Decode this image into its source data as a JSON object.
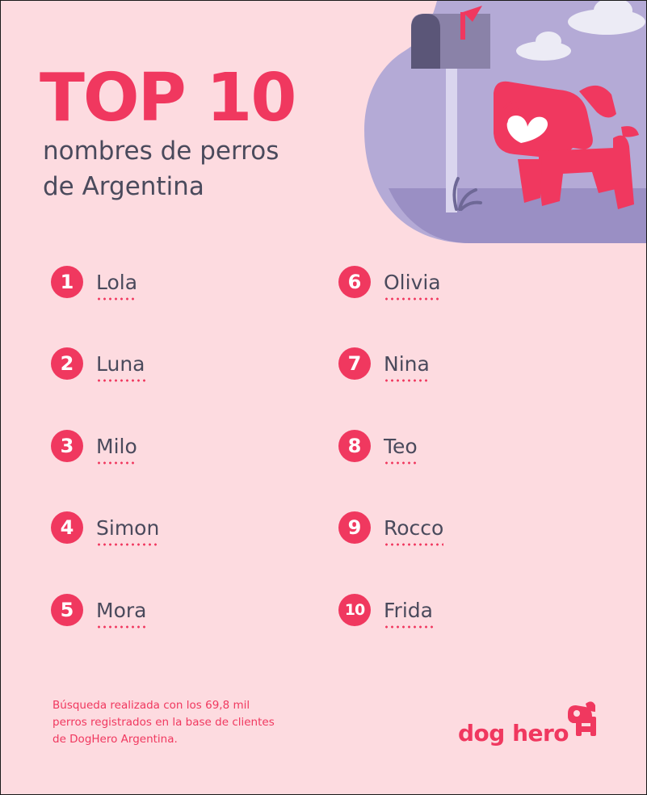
{
  "colors": {
    "accent": "#f0385f",
    "background": "#fddbe0",
    "text": "#4a4a5c",
    "lavender": "#b4aad6"
  },
  "header": {
    "title": "TOP 10",
    "subtitle_line1": "nombres de perros",
    "subtitle_line2": "de Argentina"
  },
  "ranking": [
    {
      "rank": "1",
      "name": "Lola"
    },
    {
      "rank": "2",
      "name": "Luna"
    },
    {
      "rank": "3",
      "name": "Milo"
    },
    {
      "rank": "4",
      "name": "Simon"
    },
    {
      "rank": "5",
      "name": "Mora"
    },
    {
      "rank": "6",
      "name": "Olivia"
    },
    {
      "rank": "7",
      "name": "Nina"
    },
    {
      "rank": "8",
      "name": "Teo"
    },
    {
      "rank": "9",
      "name": "Rocco"
    },
    {
      "rank": "10",
      "name": "Frida"
    }
  ],
  "footnote": {
    "line1": "Búsqueda realizada con los 69,8 mil",
    "line2": "perros registrados en la base de clientes",
    "line3": "de DogHero Argentina."
  },
  "brand": {
    "logo_text": "dog hero",
    "logo_icon": "doghero-dog-icon"
  },
  "illustration": {
    "icons": [
      "mailbox-icon",
      "cloud-icon",
      "dog-icon",
      "plant-icon"
    ]
  }
}
